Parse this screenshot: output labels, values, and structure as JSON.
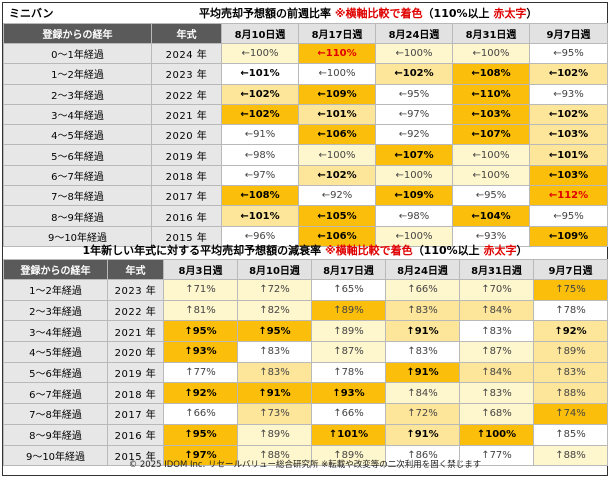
{
  "title": {
    "label": "ミニバン",
    "main": "平均売却予想額の前週比率",
    "note_red": "※横軸比較で着色",
    "note_paren": "（110%以上",
    "note_red2": "赤太字",
    "note_close": "）"
  },
  "table1": {
    "headers": [
      "登録からの経年",
      "年式",
      "8月10日週",
      "8月17日週",
      "8月24日週",
      "8月31日週",
      "9月7日週"
    ],
    "rows": [
      {
        "label": "0～1年経過",
        "year": "2024 年",
        "cells": [
          {
            "v": "←100%",
            "c": "#fef6cc",
            "b": false,
            "r": false
          },
          {
            "v": "←110%",
            "c": "#fbbf0b",
            "b": true,
            "r": true
          },
          {
            "v": "←100%",
            "c": "#fef6cc",
            "b": false,
            "r": false
          },
          {
            "v": "←100%",
            "c": "#fef6cc",
            "b": false,
            "r": false
          },
          {
            "v": "←95%",
            "c": "#ffffff",
            "b": false,
            "r": false
          }
        ]
      },
      {
        "label": "1～2年経過",
        "year": "2023 年",
        "cells": [
          {
            "v": "←101%",
            "c": "#ffffff",
            "b": true,
            "r": false
          },
          {
            "v": "←100%",
            "c": "#ffffff",
            "b": false,
            "r": false
          },
          {
            "v": "←102%",
            "c": "#fde69a",
            "b": true,
            "r": false
          },
          {
            "v": "←108%",
            "c": "#fbbf0b",
            "b": true,
            "r": false
          },
          {
            "v": "←102%",
            "c": "#fde69a",
            "b": true,
            "r": false
          }
        ]
      },
      {
        "label": "2～3年経過",
        "year": "2022 年",
        "cells": [
          {
            "v": "←102%",
            "c": "#fde69a",
            "b": true,
            "r": false
          },
          {
            "v": "←109%",
            "c": "#fbbf0b",
            "b": true,
            "r": false
          },
          {
            "v": "←95%",
            "c": "#ffffff",
            "b": false,
            "r": false
          },
          {
            "v": "←110%",
            "c": "#fbbf0b",
            "b": true,
            "r": false
          },
          {
            "v": "←93%",
            "c": "#ffffff",
            "b": false,
            "r": false
          }
        ]
      },
      {
        "label": "3～4年経過",
        "year": "2021 年",
        "cells": [
          {
            "v": "←102%",
            "c": "#fbbf0b",
            "b": true,
            "r": false
          },
          {
            "v": "←101%",
            "c": "#fde69a",
            "b": true,
            "r": false
          },
          {
            "v": "←97%",
            "c": "#ffffff",
            "b": false,
            "r": false
          },
          {
            "v": "←103%",
            "c": "#fbbf0b",
            "b": true,
            "r": false
          },
          {
            "v": "←102%",
            "c": "#fde69a",
            "b": true,
            "r": false
          }
        ]
      },
      {
        "label": "4～5年経過",
        "year": "2020 年",
        "cells": [
          {
            "v": "←91%",
            "c": "#ffffff",
            "b": false,
            "r": false
          },
          {
            "v": "←106%",
            "c": "#fbbf0b",
            "b": true,
            "r": false
          },
          {
            "v": "←92%",
            "c": "#ffffff",
            "b": false,
            "r": false
          },
          {
            "v": "←107%",
            "c": "#fbbf0b",
            "b": true,
            "r": false
          },
          {
            "v": "←103%",
            "c": "#fde69a",
            "b": true,
            "r": false
          }
        ]
      },
      {
        "label": "5～6年経過",
        "year": "2019 年",
        "cells": [
          {
            "v": "←98%",
            "c": "#ffffff",
            "b": false,
            "r": false
          },
          {
            "v": "←100%",
            "c": "#fef6cc",
            "b": false,
            "r": false
          },
          {
            "v": "←107%",
            "c": "#fbbf0b",
            "b": true,
            "r": false
          },
          {
            "v": "←100%",
            "c": "#fef6cc",
            "b": false,
            "r": false
          },
          {
            "v": "←101%",
            "c": "#fde69a",
            "b": true,
            "r": false
          }
        ]
      },
      {
        "label": "6～7年経過",
        "year": "2018 年",
        "cells": [
          {
            "v": "←97%",
            "c": "#ffffff",
            "b": false,
            "r": false
          },
          {
            "v": "←102%",
            "c": "#fde69a",
            "b": true,
            "r": false
          },
          {
            "v": "←100%",
            "c": "#fef6cc",
            "b": false,
            "r": false
          },
          {
            "v": "←100%",
            "c": "#fef6cc",
            "b": false,
            "r": false
          },
          {
            "v": "←103%",
            "c": "#fbbf0b",
            "b": true,
            "r": false
          }
        ]
      },
      {
        "label": "7～8年経過",
        "year": "2017 年",
        "cells": [
          {
            "v": "←108%",
            "c": "#fbbf0b",
            "b": true,
            "r": false
          },
          {
            "v": "←92%",
            "c": "#ffffff",
            "b": false,
            "r": false
          },
          {
            "v": "←109%",
            "c": "#fbbf0b",
            "b": true,
            "r": false
          },
          {
            "v": "←95%",
            "c": "#ffffff",
            "b": false,
            "r": false
          },
          {
            "v": "←112%",
            "c": "#fbbf0b",
            "b": true,
            "r": true
          }
        ]
      },
      {
        "label": "8～9年経過",
        "year": "2016 年",
        "cells": [
          {
            "v": "←101%",
            "c": "#fde69a",
            "b": true,
            "r": false
          },
          {
            "v": "←105%",
            "c": "#fbbf0b",
            "b": true,
            "r": false
          },
          {
            "v": "←98%",
            "c": "#ffffff",
            "b": false,
            "r": false
          },
          {
            "v": "←104%",
            "c": "#fbbf0b",
            "b": true,
            "r": false
          },
          {
            "v": "←95%",
            "c": "#ffffff",
            "b": false,
            "r": false
          }
        ]
      },
      {
        "label": "9～10年経過",
        "year": "2015 年",
        "cells": [
          {
            "v": "←96%",
            "c": "#ffffff",
            "b": false,
            "r": false
          },
          {
            "v": "←106%",
            "c": "#fbbf0b",
            "b": true,
            "r": false
          },
          {
            "v": "←100%",
            "c": "#fef6cc",
            "b": false,
            "r": false
          },
          {
            "v": "←93%",
            "c": "#ffffff",
            "b": false,
            "r": false
          },
          {
            "v": "←109%",
            "c": "#fbbf0b",
            "b": true,
            "r": false
          }
        ]
      }
    ]
  },
  "title2": {
    "main": "1年新しい年式に対する平均売却予想額の減衰率",
    "note_red": "※横軸比較で着色",
    "note_paren": "（110%以上",
    "note_red2": "赤太字",
    "note_close": "）"
  },
  "table2": {
    "headers": [
      "登録からの経年",
      "年式",
      "8月3日週",
      "8月10日週",
      "8月17日週",
      "8月24日週",
      "8月31日週",
      "9月7日週"
    ],
    "rows": [
      {
        "label": "1～2年経過",
        "year": "2023 年",
        "cells": [
          {
            "v": "↑71%",
            "c": "#fef6cc",
            "b": false
          },
          {
            "v": "↑72%",
            "c": "#fef6cc",
            "b": false
          },
          {
            "v": "↑65%",
            "c": "#ffffff",
            "b": false
          },
          {
            "v": "↑66%",
            "c": "#fef6cc",
            "b": false
          },
          {
            "v": "↑70%",
            "c": "#fef6cc",
            "b": false
          },
          {
            "v": "↑75%",
            "c": "#fbbf0b",
            "b": false
          }
        ]
      },
      {
        "label": "2～3年経過",
        "year": "2022 年",
        "cells": [
          {
            "v": "↑81%",
            "c": "#fef6cc",
            "b": false
          },
          {
            "v": "↑82%",
            "c": "#fef6cc",
            "b": false
          },
          {
            "v": "↑89%",
            "c": "#fbbf0b",
            "b": false
          },
          {
            "v": "↑83%",
            "c": "#fde69a",
            "b": false
          },
          {
            "v": "↑84%",
            "c": "#fde69a",
            "b": false
          },
          {
            "v": "↑78%",
            "c": "#ffffff",
            "b": false
          }
        ]
      },
      {
        "label": "3～4年経過",
        "year": "2021 年",
        "cells": [
          {
            "v": "↑95%",
            "c": "#fbbf0b",
            "b": true
          },
          {
            "v": "↑95%",
            "c": "#fbbf0b",
            "b": true
          },
          {
            "v": "↑89%",
            "c": "#fef6cc",
            "b": false
          },
          {
            "v": "↑91%",
            "c": "#fde69a",
            "b": true
          },
          {
            "v": "↑83%",
            "c": "#ffffff",
            "b": false
          },
          {
            "v": "↑92%",
            "c": "#fde69a",
            "b": true
          }
        ]
      },
      {
        "label": "4～5年経過",
        "year": "2020 年",
        "cells": [
          {
            "v": "↑93%",
            "c": "#fbbf0b",
            "b": true
          },
          {
            "v": "↑83%",
            "c": "#ffffff",
            "b": false
          },
          {
            "v": "↑87%",
            "c": "#fef6cc",
            "b": false
          },
          {
            "v": "↑83%",
            "c": "#ffffff",
            "b": false
          },
          {
            "v": "↑87%",
            "c": "#fef6cc",
            "b": false
          },
          {
            "v": "↑89%",
            "c": "#fde69a",
            "b": false
          }
        ]
      },
      {
        "label": "5～6年経過",
        "year": "2019 年",
        "cells": [
          {
            "v": "↑77%",
            "c": "#ffffff",
            "b": false
          },
          {
            "v": "↑83%",
            "c": "#fde69a",
            "b": false
          },
          {
            "v": "↑78%",
            "c": "#ffffff",
            "b": false
          },
          {
            "v": "↑91%",
            "c": "#fbbf0b",
            "b": true
          },
          {
            "v": "↑84%",
            "c": "#fde69a",
            "b": false
          },
          {
            "v": "↑83%",
            "c": "#fde69a",
            "b": false
          }
        ]
      },
      {
        "label": "6～7年経過",
        "year": "2018 年",
        "cells": [
          {
            "v": "↑92%",
            "c": "#fbbf0b",
            "b": true
          },
          {
            "v": "↑91%",
            "c": "#fbbf0b",
            "b": true
          },
          {
            "v": "↑93%",
            "c": "#fbbf0b",
            "b": true
          },
          {
            "v": "↑84%",
            "c": "#fef6cc",
            "b": false
          },
          {
            "v": "↑83%",
            "c": "#fef6cc",
            "b": false
          },
          {
            "v": "↑88%",
            "c": "#fde69a",
            "b": false
          }
        ]
      },
      {
        "label": "7～8年経過",
        "year": "2017 年",
        "cells": [
          {
            "v": "↑66%",
            "c": "#ffffff",
            "b": false
          },
          {
            "v": "↑73%",
            "c": "#fde69a",
            "b": false
          },
          {
            "v": "↑66%",
            "c": "#ffffff",
            "b": false
          },
          {
            "v": "↑72%",
            "c": "#fde69a",
            "b": false
          },
          {
            "v": "↑68%",
            "c": "#fef6cc",
            "b": false
          },
          {
            "v": "↑74%",
            "c": "#fbbf0b",
            "b": false
          }
        ]
      },
      {
        "label": "8～9年経過",
        "year": "2016 年",
        "cells": [
          {
            "v": "↑95%",
            "c": "#fbbf0b",
            "b": true
          },
          {
            "v": "↑89%",
            "c": "#fef6cc",
            "b": false
          },
          {
            "v": "↑101%",
            "c": "#fbbf0b",
            "b": true
          },
          {
            "v": "↑91%",
            "c": "#fde69a",
            "b": true
          },
          {
            "v": "↑100%",
            "c": "#fbbf0b",
            "b": true
          },
          {
            "v": "↑85%",
            "c": "#ffffff",
            "b": false
          }
        ]
      },
      {
        "label": "9～10年経過",
        "year": "2015 年",
        "cells": [
          {
            "v": "↑97%",
            "c": "#fbbf0b",
            "b": true
          },
          {
            "v": "↑88%",
            "c": "#fef6cc",
            "b": false
          },
          {
            "v": "↑89%",
            "c": "#fef6cc",
            "b": false
          },
          {
            "v": "↑86%",
            "c": "#ffffff",
            "b": false
          },
          {
            "v": "↑77%",
            "c": "#ffffff",
            "b": false
          },
          {
            "v": "↑88%",
            "c": "#fef6cc",
            "b": false
          }
        ]
      }
    ]
  },
  "footer": "© 2025 IDOM Inc. リセールバリュー総合研究所 ※転載や改変等の二次利用を固く禁じます",
  "colors": {
    "strong": "#fbbf0b",
    "mid": "#fde69a",
    "light": "#fef6cc",
    "red": "#e00000",
    "header": "#5a5a5a"
  }
}
